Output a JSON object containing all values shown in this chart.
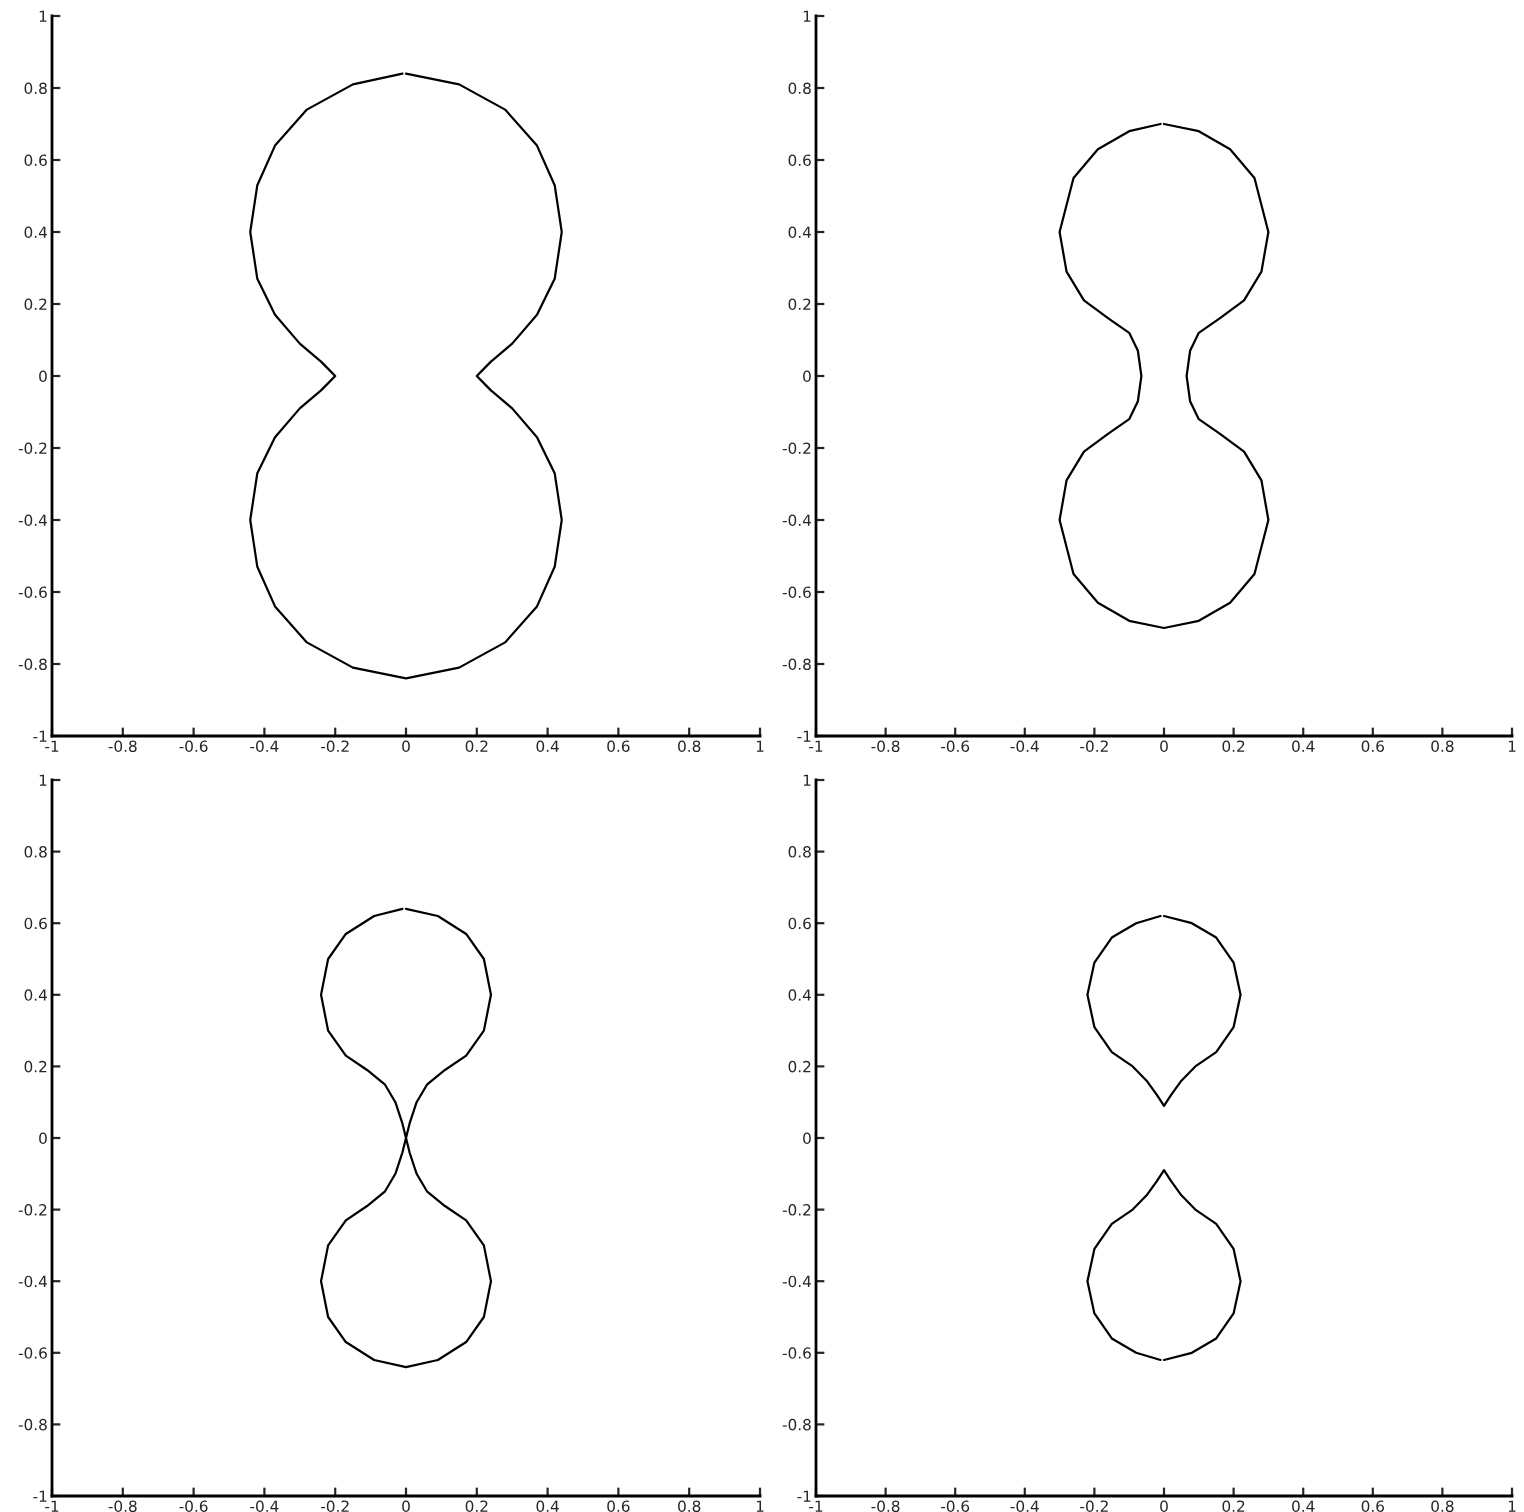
{
  "chart_data": [
    {
      "type": "line",
      "xlim": [
        -1,
        1
      ],
      "ylim": [
        -1,
        1
      ],
      "xticks": [
        -1,
        -0.8,
        -0.6,
        -0.4,
        -0.2,
        0,
        0.2,
        0.4,
        0.6,
        0.8,
        1
      ],
      "yticks": [
        -1,
        -0.8,
        -0.6,
        -0.4,
        -0.2,
        0,
        0.2,
        0.4,
        0.6,
        0.8,
        1
      ],
      "series": [
        {
          "color": "#000000",
          "x": [
            0,
            0.15,
            0.28,
            0.37,
            0.42,
            0.44,
            0.42,
            0.37,
            0.3,
            0.24,
            0.21,
            0.2,
            0.21,
            0.24,
            0.3,
            0.37,
            0.42,
            0.44,
            0.42,
            0.37,
            0.28,
            0.15,
            0,
            -0.15,
            -0.28,
            -0.37,
            -0.42,
            -0.44,
            -0.42,
            -0.37,
            -0.3,
            -0.24,
            -0.21,
            -0.2,
            -0.21,
            -0.24,
            -0.3,
            -0.37,
            -0.42,
            -0.44,
            -0.42,
            -0.37,
            -0.28,
            -0.15,
            -0.01
          ],
          "values": [
            0.84,
            0.81,
            0.74,
            0.64,
            0.53,
            0.4,
            0.27,
            0.17,
            0.09,
            0.04,
            0.01,
            0,
            -0.01,
            -0.04,
            -0.09,
            -0.17,
            -0.27,
            -0.4,
            -0.53,
            -0.64,
            -0.74,
            -0.81,
            -0.84,
            -0.81,
            -0.74,
            -0.64,
            -0.53,
            -0.4,
            -0.27,
            -0.17,
            -0.09,
            -0.04,
            -0.01,
            0,
            0.01,
            0.04,
            0.09,
            0.17,
            0.27,
            0.4,
            0.53,
            0.64,
            0.74,
            0.81,
            0.84
          ]
        }
      ]
    },
    {
      "type": "line",
      "xlim": [
        -1,
        1
      ],
      "ylim": [
        -1,
        1
      ],
      "xticks": [
        -1,
        -0.8,
        -0.6,
        -0.4,
        -0.2,
        0,
        0.2,
        0.4,
        0.6,
        0.8,
        1
      ],
      "yticks": [
        -1,
        -0.8,
        -0.6,
        -0.4,
        -0.2,
        0,
        0.2,
        0.4,
        0.6,
        0.8,
        1
      ],
      "series": [
        {
          "color": "#000000",
          "x": [
            0,
            0.1,
            0.19,
            0.26,
            0.3,
            0.28,
            0.23,
            0.16,
            0.1,
            0.075,
            0.065,
            0.075,
            0.1,
            0.16,
            0.23,
            0.28,
            0.3,
            0.26,
            0.19,
            0.1,
            0,
            -0.1,
            -0.19,
            -0.26,
            -0.3,
            -0.28,
            -0.23,
            -0.16,
            -0.1,
            -0.075,
            -0.065,
            -0.075,
            -0.1,
            -0.16,
            -0.23,
            -0.28,
            -0.3,
            -0.26,
            -0.19,
            -0.1,
            -0.01
          ],
          "values": [
            0.7,
            0.68,
            0.63,
            0.55,
            0.4,
            0.29,
            0.21,
            0.16,
            0.12,
            0.07,
            0,
            -0.07,
            -0.12,
            -0.16,
            -0.21,
            -0.29,
            -0.4,
            -0.55,
            -0.63,
            -0.68,
            -0.7,
            -0.68,
            -0.63,
            -0.55,
            -0.4,
            -0.29,
            -0.21,
            -0.16,
            -0.12,
            -0.07,
            0,
            0.07,
            0.12,
            0.16,
            0.21,
            0.29,
            0.4,
            0.55,
            0.63,
            0.68,
            0.7
          ]
        }
      ]
    },
    {
      "type": "line",
      "xlim": [
        -1,
        1
      ],
      "ylim": [
        -1,
        1
      ],
      "xticks": [
        -1,
        -0.8,
        -0.6,
        -0.4,
        -0.2,
        0,
        0.2,
        0.4,
        0.6,
        0.8,
        1
      ],
      "yticks": [
        -1,
        -0.8,
        -0.6,
        -0.4,
        -0.2,
        0,
        0.2,
        0.4,
        0.6,
        0.8,
        1
      ],
      "series": [
        {
          "color": "#000000",
          "x": [
            0,
            0.09,
            0.17,
            0.22,
            0.24,
            0.22,
            0.17,
            0.11,
            0.06,
            0.03,
            0.01,
            0,
            -0.01,
            -0.03,
            -0.06,
            -0.11,
            -0.17,
            -0.22,
            -0.24,
            -0.22,
            -0.17,
            -0.09,
            0,
            0.09,
            0.17,
            0.22,
            0.24,
            0.22,
            0.17,
            0.11,
            0.06,
            0.03,
            0.01,
            0,
            -0.01,
            -0.03,
            -0.06,
            -0.11,
            -0.17,
            -0.22,
            -0.24,
            -0.22,
            -0.17,
            -0.09,
            -0.01
          ],
          "values": [
            0.64,
            0.62,
            0.57,
            0.5,
            0.4,
            0.3,
            0.23,
            0.19,
            0.15,
            0.1,
            0.04,
            0,
            -0.04,
            -0.1,
            -0.15,
            -0.19,
            -0.23,
            -0.3,
            -0.4,
            -0.5,
            -0.57,
            -0.62,
            -0.64,
            -0.62,
            -0.57,
            -0.5,
            -0.4,
            -0.3,
            -0.23,
            -0.19,
            -0.15,
            -0.1,
            -0.04,
            0,
            0.04,
            0.1,
            0.15,
            0.19,
            0.23,
            0.3,
            0.4,
            0.5,
            0.57,
            0.62,
            0.64
          ]
        }
      ]
    },
    {
      "type": "line",
      "xlim": [
        -1,
        1
      ],
      "ylim": [
        -1,
        1
      ],
      "xticks": [
        -1,
        -0.8,
        -0.6,
        -0.4,
        -0.2,
        0,
        0.2,
        0.4,
        0.6,
        0.8,
        1
      ],
      "yticks": [
        -1,
        -0.8,
        -0.6,
        -0.4,
        -0.2,
        0,
        0.2,
        0.4,
        0.6,
        0.8,
        1
      ],
      "series": [
        {
          "color": "#000000",
          "x": [
            0,
            0.08,
            0.15,
            0.2,
            0.22,
            0.2,
            0.15,
            0.09,
            0.05,
            0.02,
            0,
            -0.02,
            -0.05,
            -0.09,
            -0.15,
            -0.2,
            -0.22,
            -0.2,
            -0.15,
            -0.08,
            -0.01
          ],
          "values": [
            0.62,
            0.6,
            0.56,
            0.49,
            0.4,
            0.31,
            0.24,
            0.2,
            0.16,
            0.12,
            0.09,
            0.12,
            0.16,
            0.2,
            0.24,
            0.31,
            0.4,
            0.49,
            0.56,
            0.6,
            0.62
          ]
        },
        {
          "color": "#000000",
          "x": [
            0,
            0.08,
            0.15,
            0.2,
            0.22,
            0.2,
            0.15,
            0.09,
            0.05,
            0.02,
            0,
            -0.02,
            -0.05,
            -0.09,
            -0.15,
            -0.2,
            -0.22,
            -0.2,
            -0.15,
            -0.08,
            -0.01
          ],
          "values": [
            -0.62,
            -0.6,
            -0.56,
            -0.49,
            -0.4,
            -0.31,
            -0.24,
            -0.2,
            -0.16,
            -0.12,
            -0.09,
            -0.12,
            -0.16,
            -0.2,
            -0.24,
            -0.31,
            -0.4,
            -0.49,
            -0.56,
            -0.6,
            -0.62
          ]
        }
      ]
    }
  ]
}
